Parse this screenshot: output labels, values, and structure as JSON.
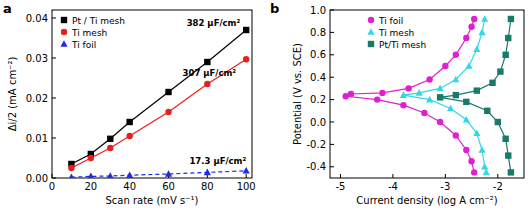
{
  "chart_data": [
    {
      "type": "line",
      "title": "a",
      "x_label": "Scan rate (mV s⁻¹)",
      "y_label": "Δi/2 (mA cm⁻²)",
      "x": [
        10,
        20,
        30,
        40,
        60,
        80,
        100
      ],
      "series": [
        {
          "name": "Pt / Ti mesh",
          "color": "#000000",
          "marker": "square",
          "line_style": "solid",
          "values": [
            0.0035,
            0.006,
            0.0098,
            0.014,
            0.0215,
            0.029,
            0.037
          ]
        },
        {
          "name": "Ti mesh",
          "color": "#e8201c",
          "marker": "circle",
          "line_style": "solid",
          "values": [
            0.0025,
            0.005,
            0.0075,
            0.0105,
            0.0165,
            0.0235,
            0.0297
          ]
        },
        {
          "name": "Ti foil",
          "color": "#1c2ee0",
          "marker": "triangle",
          "line_style": "dashed",
          "values": [
            0.0002,
            0.0004,
            0.0005,
            0.0007,
            0.001,
            0.0014,
            0.0018
          ]
        }
      ],
      "annotations": [
        "382 μF/cm²",
        "307 μF/cm²",
        "17.3 μF/cm²"
      ],
      "xlim": [
        0,
        103
      ],
      "xticks": [
        0,
        20,
        40,
        60,
        80,
        100
      ],
      "ylim": [
        0,
        0.042
      ],
      "yticks": [
        {
          "value": 0,
          "label": "0.00"
        },
        {
          "value": 0.01,
          "label": "0.01"
        },
        {
          "value": 0.02,
          "label": "0.02"
        },
        {
          "value": 0.03,
          "label": "0.03"
        },
        {
          "value": 0.04,
          "label": "0.04"
        }
      ],
      "grid": false,
      "legend": "upper left"
    },
    {
      "type": "line",
      "title": "b",
      "x_label": "Current density (log A cm⁻²)",
      "y_label": "Potential (V vs. SCE)",
      "series": [
        {
          "name": "Ti foil",
          "color": "#e020d0",
          "marker": "circle",
          "line_style": "solid",
          "x": [
            -2.45,
            -2.5,
            -2.6,
            -2.8,
            -3.0,
            -3.3,
            -3.7,
            -4.2,
            -4.8,
            -4.9,
            -4.3,
            -3.8,
            -3.4,
            -3.1,
            -2.8,
            -2.6,
            -2.5,
            -2.45
          ],
          "values": [
            0.92,
            0.85,
            0.75,
            0.6,
            0.5,
            0.38,
            0.3,
            0.26,
            0.25,
            0.23,
            0.2,
            0.15,
            0.08,
            0.0,
            -0.12,
            -0.25,
            -0.35,
            -0.45
          ]
        },
        {
          "name": "Ti mesh",
          "color": "#33d8e6",
          "marker": "triangle",
          "line_style": "solid",
          "x": [
            -2.25,
            -2.3,
            -2.4,
            -2.55,
            -2.8,
            -3.1,
            -3.5,
            -3.8,
            -3.3,
            -2.9,
            -2.6,
            -2.4,
            -2.3,
            -2.25,
            -2.22
          ],
          "values": [
            0.92,
            0.8,
            0.65,
            0.5,
            0.38,
            0.3,
            0.26,
            0.24,
            0.2,
            0.12,
            0.02,
            -0.1,
            -0.25,
            -0.4,
            -0.45
          ]
        },
        {
          "name": "Pt/Ti mesh",
          "color": "#1a7a6a",
          "marker": "square",
          "line_style": "solid",
          "x": [
            -1.75,
            -1.8,
            -1.85,
            -1.95,
            -2.1,
            -2.4,
            -2.8,
            -3.1,
            -2.6,
            -2.2,
            -2.0,
            -1.85,
            -1.8,
            -1.75
          ],
          "values": [
            0.92,
            0.75,
            0.6,
            0.45,
            0.35,
            0.28,
            0.24,
            0.22,
            0.18,
            0.1,
            0.0,
            -0.15,
            -0.3,
            -0.45
          ]
        }
      ],
      "xlim": [
        -5.2,
        -1.5
      ],
      "xticks": [
        -5,
        -4,
        -3,
        -2
      ],
      "ylim": [
        -0.5,
        1.0
      ],
      "yticks": [
        -0.4,
        -0.2,
        {
          "value": 0,
          "label": "0.0"
        },
        0.2,
        0.4,
        0.6,
        0.8,
        {
          "value": 1.0,
          "label": "1.0"
        }
      ],
      "grid": false,
      "legend": "upper center"
    }
  ]
}
